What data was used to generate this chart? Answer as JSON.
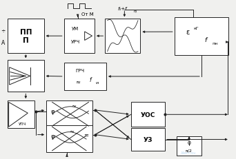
{
  "bg": "#f0f0ee",
  "lw": 0.7,
  "blocks": {
    "ppp": [
      0.04,
      0.6,
      0.155,
      0.22
    ],
    "um": [
      0.285,
      0.6,
      0.135,
      0.22
    ],
    "mix": [
      0.455,
      0.6,
      0.155,
      0.22
    ],
    "eps": [
      0.745,
      0.59,
      0.225,
      0.24
    ],
    "ant": [
      0.04,
      0.36,
      0.155,
      0.2
    ],
    "grch": [
      0.285,
      0.37,
      0.175,
      0.18
    ],
    "upch": [
      0.04,
      0.13,
      0.12,
      0.18
    ],
    "phi1": [
      0.21,
      0.13,
      0.2,
      0.18
    ],
    "phi2": [
      0.21,
      -0.07,
      0.2,
      0.18
    ],
    "uos": [
      0.565,
      0.13,
      0.145,
      0.18
    ],
    "uz": [
      0.565,
      -0.07,
      0.145,
      0.18
    ],
    "phibox": [
      0.755,
      -0.15,
      0.105,
      0.135
    ]
  }
}
